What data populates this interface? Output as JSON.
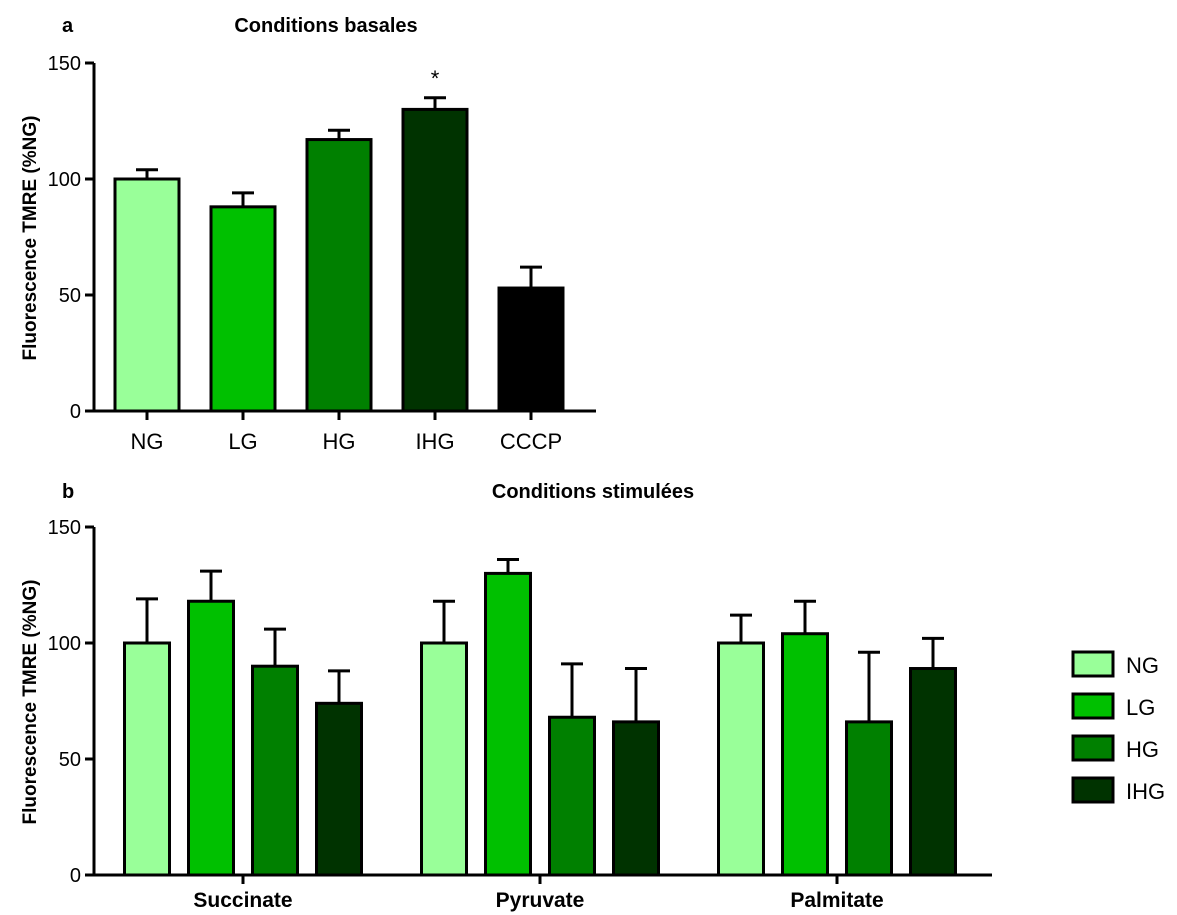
{
  "panels": {
    "a": {
      "letter": "a",
      "title": "Conditions basales"
    },
    "b": {
      "letter": "b",
      "title": "Conditions stimulées"
    }
  },
  "legend": {
    "entries": [
      {
        "label": "NG",
        "color": "#99ff99"
      },
      {
        "label": "LG",
        "color": "#00c000"
      },
      {
        "label": "HG",
        "color": "#008000"
      },
      {
        "label": "IHG",
        "color": "#003300"
      }
    ]
  },
  "chart_data": [
    {
      "type": "bar",
      "title": "Conditions basales",
      "ylabel": "Fluorescence TMRE (%NG)",
      "xlabel": "",
      "ylim": [
        0,
        150
      ],
      "yticks": [
        0,
        50,
        100,
        150
      ],
      "categories": [
        "NG",
        "LG",
        "HG",
        "IHG",
        "CCCP"
      ],
      "values": [
        100,
        88,
        117,
        130,
        53
      ],
      "errors": [
        4,
        6,
        4,
        5,
        9
      ],
      "colors": [
        "#99ff99",
        "#00c000",
        "#008000",
        "#003300",
        "#000000"
      ],
      "annotations": [
        {
          "category": "IHG",
          "text": "*"
        }
      ],
      "grid": false,
      "legend": "none"
    },
    {
      "type": "bar",
      "title": "Conditions stimulées",
      "ylabel": "Fluorescence TMRE (%NG)",
      "xlabel": "",
      "ylim": [
        0,
        150
      ],
      "yticks": [
        0,
        50,
        100,
        150
      ],
      "categories": [
        "Succinate",
        "Pyruvate",
        "Palmitate"
      ],
      "series": [
        {
          "name": "NG",
          "color": "#99ff99",
          "values": [
            100,
            100,
            100
          ],
          "errors": [
            19,
            18,
            12
          ]
        },
        {
          "name": "LG",
          "color": "#00c000",
          "values": [
            118,
            130,
            104
          ],
          "errors": [
            13,
            6,
            14
          ]
        },
        {
          "name": "HG",
          "color": "#008000",
          "values": [
            90,
            68,
            66
          ],
          "errors": [
            16,
            23,
            30
          ]
        },
        {
          "name": "IHG",
          "color": "#003300",
          "values": [
            74,
            66,
            89
          ],
          "errors": [
            14,
            23,
            13
          ]
        }
      ],
      "grid": false,
      "legend": "right"
    }
  ]
}
